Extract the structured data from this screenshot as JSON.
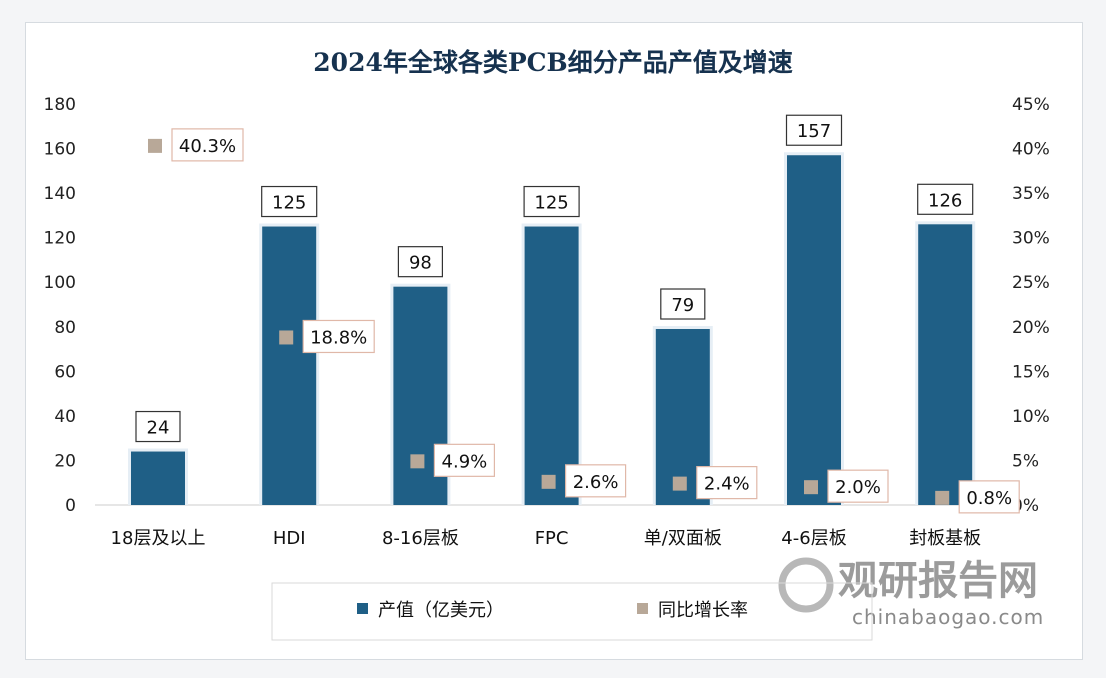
{
  "chart_data": {
    "type": "bar",
    "title": "2024年全球各类PCB细分产品产值及增速",
    "categories": [
      "18层及以上",
      "HDI",
      "8-16层板",
      "FPC",
      "单/双面板",
      "4-6层板",
      "封板基板"
    ],
    "series": [
      {
        "name": "产值（亿美元）",
        "type": "bar",
        "axis": "left",
        "color": "#1f5f86",
        "values": [
          24,
          125,
          98,
          125,
          79,
          157,
          126
        ],
        "labels": [
          "24",
          "125",
          "98",
          "125",
          "79",
          "157",
          "126"
        ]
      },
      {
        "name": "同比增长率",
        "type": "scatter",
        "axis": "right",
        "color": "#b8a898",
        "values": [
          40.3,
          18.8,
          4.9,
          2.6,
          2.4,
          2.0,
          0.8
        ],
        "labels": [
          "40.3%",
          "18.8%",
          "4.9%",
          "2.6%",
          "2.4%",
          "2.0%",
          "0.8%"
        ]
      }
    ],
    "ylim": [
      0,
      180
    ],
    "yticks": [
      "0",
      "20",
      "40",
      "60",
      "80",
      "100",
      "120",
      "140",
      "160",
      "180"
    ],
    "y2lim": [
      0,
      45
    ],
    "y2ticks": [
      "0%",
      "5%",
      "10%",
      "15%",
      "20%",
      "25%",
      "30%",
      "35%",
      "40%",
      "45%"
    ],
    "grid": false,
    "legend": "bottom"
  },
  "watermark": {
    "cn": "观研报告网",
    "en": "chinabaogao.com"
  }
}
